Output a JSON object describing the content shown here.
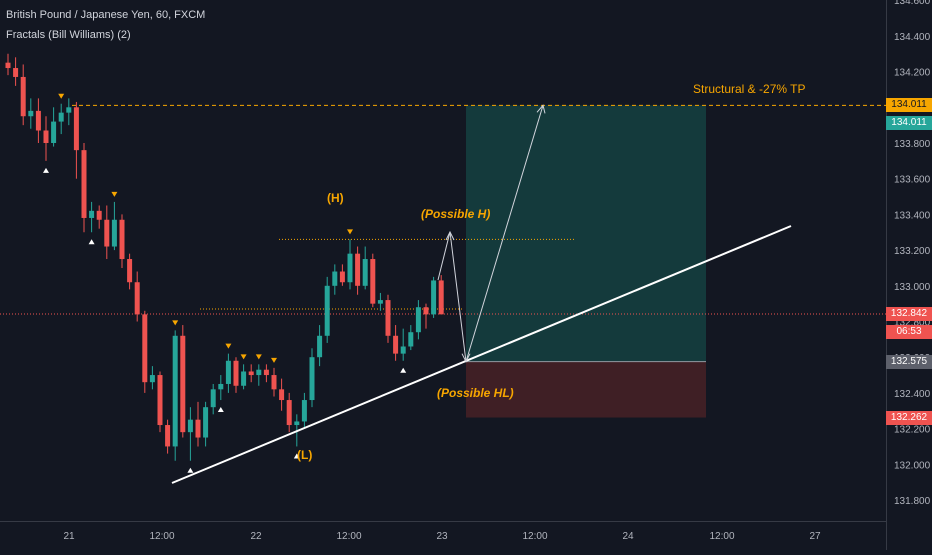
{
  "header": {
    "symbol_line": "British Pound / Japanese Yen, 60, FXCM",
    "indicator_line": "Fractals (Bill Williams) (2)"
  },
  "price_axis": {
    "ticks": [
      "131.800",
      "132.000",
      "132.200",
      "132.400",
      "132.600",
      "132.800",
      "133.000",
      "133.200",
      "133.400",
      "133.600",
      "133.800",
      "134.000",
      "134.200",
      "134.400",
      "134.600"
    ]
  },
  "time_axis": {
    "labels": [
      "21",
      "12:00",
      "22",
      "12:00",
      "23",
      "12:00",
      "24",
      "12:00",
      "27"
    ]
  },
  "price_tags": [
    {
      "label": "134.011",
      "bg": "#f7a600",
      "fg": "#131722",
      "price": 134.011
    },
    {
      "label": "134.011",
      "bg": "#26a69a",
      "fg": "#ffffff",
      "price": 133.911
    },
    {
      "label": "132.842",
      "bg": "#ef5350",
      "fg": "#ffffff",
      "price": 132.842
    },
    {
      "label": "06:53",
      "bg": "#ef5350",
      "fg": "#ffffff",
      "price": 132.742
    },
    {
      "label": "132.575",
      "bg": "#5d606b",
      "fg": "#ffffff",
      "price": 132.575
    },
    {
      "label": "132.262",
      "bg": "#ef5350",
      "fg": "#ffffff",
      "price": 132.262
    }
  ],
  "annotations": {
    "tp_label": "Structural & -27% TP",
    "h_label": "(H)",
    "possible_h": "(Possible H)",
    "possible_hl": "(Possible HL)",
    "l_label": "(L)"
  },
  "colors": {
    "background": "#131722",
    "bull": "#26a69a",
    "bear": "#ef5350",
    "annotation": "#f7a600",
    "target_zone": "#143a3c",
    "stop_zone": "#3f1f25",
    "trendline": "#ffffff",
    "axis_text": "#b2b5be"
  },
  "chart_data": {
    "type": "candlestick",
    "symbol": "British Pound / Japanese Yen",
    "interval": "60",
    "source": "FXCM",
    "ylim": [
      131.7,
      134.6
    ],
    "levels": {
      "target": 134.011,
      "last_price": 132.842,
      "entry": 132.575,
      "stop": 132.262,
      "fractal_high": 133.26,
      "fractal_low": 132.87
    },
    "candles": [
      {
        "o": 134.25,
        "h": 134.3,
        "l": 134.18,
        "c": 134.22
      },
      {
        "o": 134.22,
        "h": 134.28,
        "l": 134.12,
        "c": 134.17
      },
      {
        "o": 134.17,
        "h": 134.24,
        "l": 133.9,
        "c": 133.95
      },
      {
        "o": 133.95,
        "h": 134.05,
        "l": 133.88,
        "c": 133.98
      },
      {
        "o": 133.98,
        "h": 134.05,
        "l": 133.8,
        "c": 133.87
      },
      {
        "o": 133.87,
        "h": 133.95,
        "l": 133.7,
        "c": 133.8
      },
      {
        "o": 133.8,
        "h": 134.0,
        "l": 133.78,
        "c": 133.92
      },
      {
        "o": 133.92,
        "h": 134.02,
        "l": 133.85,
        "c": 133.97
      },
      {
        "o": 133.97,
        "h": 134.05,
        "l": 133.9,
        "c": 134.0
      },
      {
        "o": 134.0,
        "h": 134.03,
        "l": 133.6,
        "c": 133.76
      },
      {
        "o": 133.76,
        "h": 133.8,
        "l": 133.3,
        "c": 133.38
      },
      {
        "o": 133.38,
        "h": 133.47,
        "l": 133.3,
        "c": 133.42
      },
      {
        "o": 133.42,
        "h": 133.45,
        "l": 133.32,
        "c": 133.37
      },
      {
        "o": 133.37,
        "h": 133.45,
        "l": 133.15,
        "c": 133.22
      },
      {
        "o": 133.22,
        "h": 133.47,
        "l": 133.2,
        "c": 133.37
      },
      {
        "o": 133.37,
        "h": 133.4,
        "l": 133.1,
        "c": 133.15
      },
      {
        "o": 133.15,
        "h": 133.18,
        "l": 132.98,
        "c": 133.02
      },
      {
        "o": 133.02,
        "h": 133.08,
        "l": 132.8,
        "c": 132.84
      },
      {
        "o": 132.84,
        "h": 132.86,
        "l": 132.4,
        "c": 132.46
      },
      {
        "o": 132.46,
        "h": 132.55,
        "l": 132.42,
        "c": 132.5
      },
      {
        "o": 132.5,
        "h": 132.52,
        "l": 132.18,
        "c": 132.22
      },
      {
        "o": 132.22,
        "h": 132.25,
        "l": 132.06,
        "c": 132.1
      },
      {
        "o": 132.1,
        "h": 132.75,
        "l": 132.02,
        "c": 132.72
      },
      {
        "o": 132.72,
        "h": 132.78,
        "l": 132.15,
        "c": 132.18
      },
      {
        "o": 132.18,
        "h": 132.32,
        "l": 132.02,
        "c": 132.25
      },
      {
        "o": 132.25,
        "h": 132.35,
        "l": 132.1,
        "c": 132.15
      },
      {
        "o": 132.15,
        "h": 132.35,
        "l": 132.1,
        "c": 132.32
      },
      {
        "o": 132.32,
        "h": 132.45,
        "l": 132.28,
        "c": 132.42
      },
      {
        "o": 132.42,
        "h": 132.5,
        "l": 132.36,
        "c": 132.45
      },
      {
        "o": 132.45,
        "h": 132.62,
        "l": 132.4,
        "c": 132.58
      },
      {
        "o": 132.58,
        "h": 132.6,
        "l": 132.4,
        "c": 132.44
      },
      {
        "o": 132.44,
        "h": 132.56,
        "l": 132.42,
        "c": 132.52
      },
      {
        "o": 132.52,
        "h": 132.56,
        "l": 132.46,
        "c": 132.5
      },
      {
        "o": 132.5,
        "h": 132.56,
        "l": 132.44,
        "c": 132.53
      },
      {
        "o": 132.53,
        "h": 132.56,
        "l": 132.46,
        "c": 132.5
      },
      {
        "o": 132.5,
        "h": 132.54,
        "l": 132.38,
        "c": 132.42
      },
      {
        "o": 132.42,
        "h": 132.48,
        "l": 132.3,
        "c": 132.36
      },
      {
        "o": 132.36,
        "h": 132.4,
        "l": 132.18,
        "c": 132.22
      },
      {
        "o": 132.22,
        "h": 132.28,
        "l": 132.1,
        "c": 132.24
      },
      {
        "o": 132.24,
        "h": 132.4,
        "l": 132.2,
        "c": 132.36
      },
      {
        "o": 132.36,
        "h": 132.65,
        "l": 132.32,
        "c": 132.6
      },
      {
        "o": 132.6,
        "h": 132.78,
        "l": 132.55,
        "c": 132.72
      },
      {
        "o": 132.72,
        "h": 133.05,
        "l": 132.68,
        "c": 133.0
      },
      {
        "o": 133.0,
        "h": 133.12,
        "l": 132.95,
        "c": 133.08
      },
      {
        "o": 133.08,
        "h": 133.12,
        "l": 133.0,
        "c": 133.02
      },
      {
        "o": 133.02,
        "h": 133.26,
        "l": 132.98,
        "c": 133.18
      },
      {
        "o": 133.18,
        "h": 133.22,
        "l": 132.95,
        "c": 133.0
      },
      {
        "o": 133.0,
        "h": 133.22,
        "l": 132.98,
        "c": 133.15
      },
      {
        "o": 133.15,
        "h": 133.18,
        "l": 132.88,
        "c": 132.9
      },
      {
        "o": 132.9,
        "h": 132.96,
        "l": 132.86,
        "c": 132.92
      },
      {
        "o": 132.92,
        "h": 132.95,
        "l": 132.68,
        "c": 132.72
      },
      {
        "o": 132.72,
        "h": 132.78,
        "l": 132.58,
        "c": 132.62
      },
      {
        "o": 132.62,
        "h": 132.76,
        "l": 132.58,
        "c": 132.66
      },
      {
        "o": 132.66,
        "h": 132.78,
        "l": 132.64,
        "c": 132.74
      },
      {
        "o": 132.74,
        "h": 132.92,
        "l": 132.7,
        "c": 132.88
      },
      {
        "o": 132.88,
        "h": 132.9,
        "l": 132.76,
        "c": 132.84
      },
      {
        "o": 132.84,
        "h": 133.05,
        "l": 132.82,
        "c": 133.03
      },
      {
        "o": 133.03,
        "h": 133.06,
        "l": 132.84,
        "c": 132.84
      }
    ],
    "fractals_up": [
      7,
      14,
      22,
      29,
      31,
      33,
      35,
      45
    ],
    "fractals_down": [
      5,
      11,
      24,
      28,
      38,
      52
    ]
  }
}
